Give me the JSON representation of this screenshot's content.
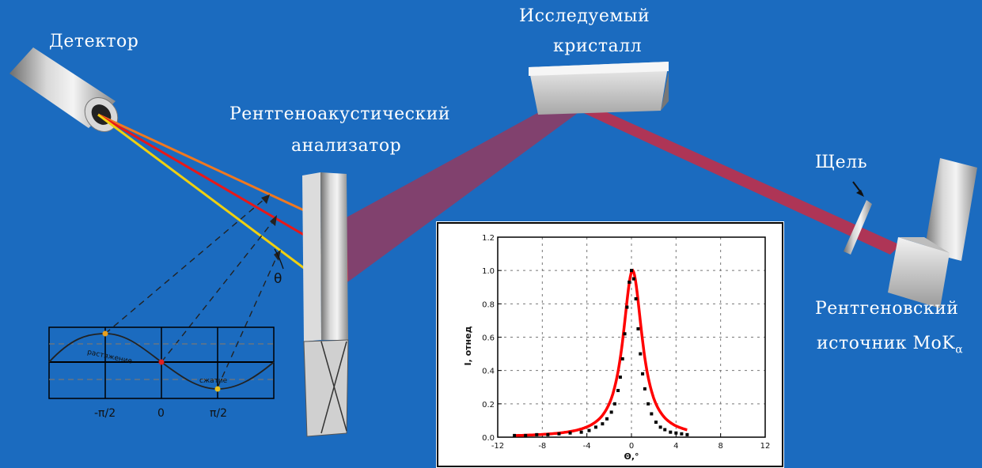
{
  "labels": {
    "detector": "Детектор",
    "crystal_line1": "Исследуемый",
    "crystal_line2": "кристалл",
    "analyzer_line1": "Рентгеноакустический",
    "analyzer_line2": "анализатор",
    "slit": "Щель",
    "source_line1": "Рентгеновский",
    "source_line2": "источник MoK",
    "source_subscript": "α",
    "theta": "θ"
  },
  "wave_diagram": {
    "tick_labels": [
      "-π/2",
      "0",
      "π/2"
    ],
    "stretch_label": "растяжение",
    "compress_label": "сжатие"
  },
  "chart_data": {
    "type": "scatter",
    "xlabel": "Θ,°",
    "ylabel": "I",
    "ylabel_sub": "отнед",
    "xlim": [
      -12,
      12
    ],
    "ylim": [
      0,
      1.2
    ],
    "xticks": [
      -12,
      -8,
      -4,
      0,
      4,
      8,
      12
    ],
    "yticks": [
      0.0,
      0.2,
      0.4,
      0.6,
      0.8,
      1.0,
      1.2
    ],
    "ytick_labels": [
      "0.0",
      "0.2",
      "0.4",
      "0.6",
      "0.8",
      "1.0",
      "1.2"
    ],
    "grid": true,
    "series": [
      {
        "kind": "points",
        "color": "#000000",
        "x": [
          -10.5,
          -9.5,
          -8.5,
          -7.5,
          -6.5,
          -5.5,
          -4.5,
          -3.8,
          -3.2,
          -2.6,
          -2.2,
          -1.8,
          -1.5,
          -1.2,
          -1.0,
          -0.8,
          -0.6,
          -0.4,
          -0.2,
          0.0,
          0.2,
          0.4,
          0.6,
          0.8,
          1.0,
          1.2,
          1.5,
          1.8,
          2.2,
          2.6,
          3.0,
          3.5,
          4.0,
          4.5,
          5.0
        ],
        "y": [
          0.01,
          0.01,
          0.015,
          0.015,
          0.02,
          0.025,
          0.03,
          0.04,
          0.06,
          0.08,
          0.11,
          0.15,
          0.2,
          0.28,
          0.36,
          0.47,
          0.62,
          0.78,
          0.93,
          1.0,
          0.95,
          0.83,
          0.65,
          0.5,
          0.38,
          0.29,
          0.2,
          0.14,
          0.09,
          0.06,
          0.045,
          0.03,
          0.025,
          0.02,
          0.015
        ]
      },
      {
        "kind": "fit",
        "color": "#ff0000",
        "center": 0.1,
        "halfwidth": 1.05,
        "amplitude": 1.0,
        "x_range": [
          -10.5,
          5.0
        ]
      }
    ]
  },
  "colors": {
    "background": "#1b6bbf",
    "beam_red": "#e8202e",
    "ray_orange": "#f07820",
    "ray_red": "#e81818",
    "ray_yellow": "#f0d010"
  }
}
